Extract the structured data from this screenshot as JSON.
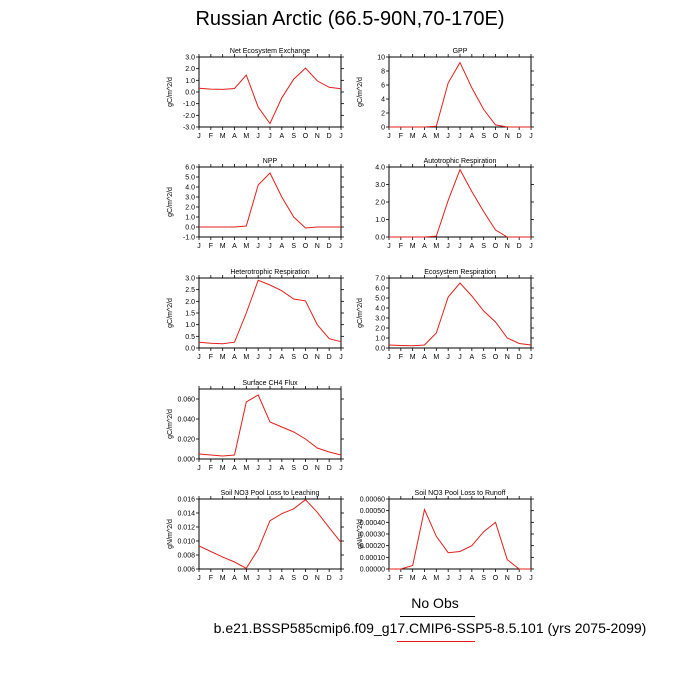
{
  "figure": {
    "title": "Russian Arctic (66.5-90N,70-170E)",
    "legend": [
      {
        "label": "No Obs",
        "color": "#000000"
      },
      {
        "label": "b.e21.BSSP585cmip6.f09_g17.CMIP6-SSP5-8.5.101 (yrs 2075-2099)",
        "color": "#e0201b"
      }
    ]
  },
  "chart_data": [
    {
      "type": "line",
      "title": "Net Ecosystem Exchange",
      "xlabel": "",
      "ylabel": "gC/m^2/d",
      "categories": [
        "J",
        "F",
        "M",
        "A",
        "M",
        "J",
        "J",
        "A",
        "S",
        "O",
        "N",
        "D",
        "J"
      ],
      "ylim": [
        -3.0,
        3.0
      ],
      "yticks": [
        "3.0",
        "2.0",
        "1.0",
        "0.0",
        "-1.0",
        "-2.0",
        "-3.0"
      ],
      "series": [
        {
          "values": [
            0.32,
            0.25,
            0.22,
            0.3,
            1.45,
            -1.3,
            -2.7,
            -0.5,
            1.1,
            2.05,
            0.95,
            0.4,
            0.28
          ]
        }
      ]
    },
    {
      "type": "line",
      "title": "GPP",
      "xlabel": "",
      "ylabel": "gC/m^2/d",
      "categories": [
        "J",
        "F",
        "M",
        "A",
        "M",
        "J",
        "J",
        "A",
        "S",
        "O",
        "N",
        "D",
        "J"
      ],
      "ylim": [
        0,
        10
      ],
      "yticks": [
        "10",
        "8",
        "6",
        "4",
        "2",
        "0"
      ],
      "series": [
        {
          "values": [
            0.0,
            0.0,
            0.0,
            0.0,
            0.1,
            6.3,
            9.2,
            5.6,
            2.5,
            0.3,
            0.0,
            0.0,
            0.0
          ]
        }
      ]
    },
    {
      "type": "line",
      "title": "NPP",
      "xlabel": "",
      "ylabel": "gC/m^2/d",
      "categories": [
        "J",
        "F",
        "M",
        "A",
        "M",
        "J",
        "J",
        "A",
        "S",
        "O",
        "N",
        "D",
        "J"
      ],
      "ylim": [
        -1.0,
        6.0
      ],
      "yticks": [
        "6.0",
        "5.0",
        "4.0",
        "3.0",
        "2.0",
        "1.0",
        "0.0",
        "-1.0"
      ],
      "series": [
        {
          "values": [
            0.0,
            0.0,
            0.0,
            0.0,
            0.1,
            4.2,
            5.4,
            3.0,
            1.0,
            -0.1,
            0.0,
            0.0,
            0.0
          ]
        }
      ]
    },
    {
      "type": "line",
      "title": "Autotrophic Respiration",
      "xlabel": "",
      "ylabel": "",
      "categories": [
        "J",
        "F",
        "M",
        "A",
        "M",
        "J",
        "J",
        "A",
        "S",
        "O",
        "N",
        "D",
        "J"
      ],
      "ylim": [
        0.0,
        4.0
      ],
      "yticks": [
        "4.0",
        "3.0",
        "2.0",
        "1.0",
        "0.0"
      ],
      "series": [
        {
          "values": [
            0.0,
            0.0,
            0.0,
            0.0,
            0.05,
            2.1,
            3.85,
            2.6,
            1.45,
            0.4,
            0.0,
            0.0,
            0.0
          ]
        }
      ]
    },
    {
      "type": "line",
      "title": "Heterotrophic Respiration",
      "xlabel": "",
      "ylabel": "gC/m^2/d",
      "categories": [
        "J",
        "F",
        "M",
        "A",
        "M",
        "J",
        "J",
        "A",
        "S",
        "O",
        "N",
        "D",
        "J"
      ],
      "ylim": [
        0.0,
        3.0
      ],
      "yticks": [
        "3.0",
        "2.5",
        "2.0",
        "1.5",
        "1.0",
        "0.5",
        "0.0"
      ],
      "series": [
        {
          "values": [
            0.25,
            0.2,
            0.18,
            0.25,
            1.5,
            2.9,
            2.7,
            2.45,
            2.1,
            2.02,
            1.0,
            0.4,
            0.27
          ]
        }
      ]
    },
    {
      "type": "line",
      "title": "Ecosystem Respiration",
      "xlabel": "",
      "ylabel": "gC/m^2/d",
      "categories": [
        "J",
        "F",
        "M",
        "A",
        "M",
        "J",
        "J",
        "A",
        "S",
        "O",
        "N",
        "D",
        "J"
      ],
      "ylim": [
        0.0,
        7.0
      ],
      "yticks": [
        "7.0",
        "6.0",
        "5.0",
        "4.0",
        "3.0",
        "2.0",
        "1.0",
        "0.0"
      ],
      "series": [
        {
          "values": [
            0.3,
            0.25,
            0.22,
            0.3,
            1.5,
            5.1,
            6.5,
            5.2,
            3.7,
            2.6,
            1.0,
            0.45,
            0.3
          ]
        }
      ]
    },
    {
      "type": "line",
      "title": "Surface CH4 Flux",
      "xlabel": "",
      "ylabel": "gC/m^2/d",
      "categories": [
        "J",
        "F",
        "M",
        "A",
        "M",
        "J",
        "J",
        "A",
        "S",
        "O",
        "N",
        "D",
        "J"
      ],
      "ylim": [
        0.0,
        0.07
      ],
      "yticks": [
        "0.060",
        "0.040",
        "0.020",
        "0.000"
      ],
      "ytick_values": [
        0.06,
        0.04,
        0.02,
        0.0
      ],
      "series": [
        {
          "values": [
            0.005,
            0.004,
            0.003,
            0.004,
            0.057,
            0.064,
            0.037,
            0.032,
            0.027,
            0.02,
            0.011,
            0.007,
            0.004
          ]
        }
      ]
    },
    {
      "type": "line",
      "title": "Soil NO3 Pool Loss to Leaching",
      "xlabel": "",
      "ylabel": "gN/m^2/d",
      "categories": [
        "J",
        "F",
        "M",
        "A",
        "M",
        "J",
        "J",
        "A",
        "S",
        "O",
        "N",
        "D",
        "J"
      ],
      "ylim": [
        0.006,
        0.016
      ],
      "yticks": [
        "0.016",
        "0.014",
        "0.012",
        "0.010",
        "0.008",
        "0.006"
      ],
      "series": [
        {
          "values": [
            0.0093,
            0.0085,
            0.0077,
            0.007,
            0.0061,
            0.0088,
            0.0129,
            0.0139,
            0.0146,
            0.0159,
            0.0141,
            0.0119,
            0.0098
          ]
        }
      ]
    },
    {
      "type": "line",
      "title": "Soil NO3 Pool Loss to Runoff",
      "xlabel": "",
      "ylabel": "gN/m^2/d",
      "categories": [
        "J",
        "F",
        "M",
        "A",
        "M",
        "J",
        "J",
        "A",
        "S",
        "O",
        "N",
        "D",
        "J"
      ],
      "ylim": [
        0.0,
        0.0006
      ],
      "yticks": [
        "0.00060",
        "0.00050",
        "0.00040",
        "0.00030",
        "0.00020",
        "0.00010",
        "0.00000"
      ],
      "series": [
        {
          "values": [
            0.0,
            0.0,
            3e-05,
            0.00051,
            0.00028,
            0.00014,
            0.00015,
            0.0002,
            0.00032,
            0.0004,
            8e-05,
            0.0,
            0.0
          ]
        }
      ]
    }
  ]
}
